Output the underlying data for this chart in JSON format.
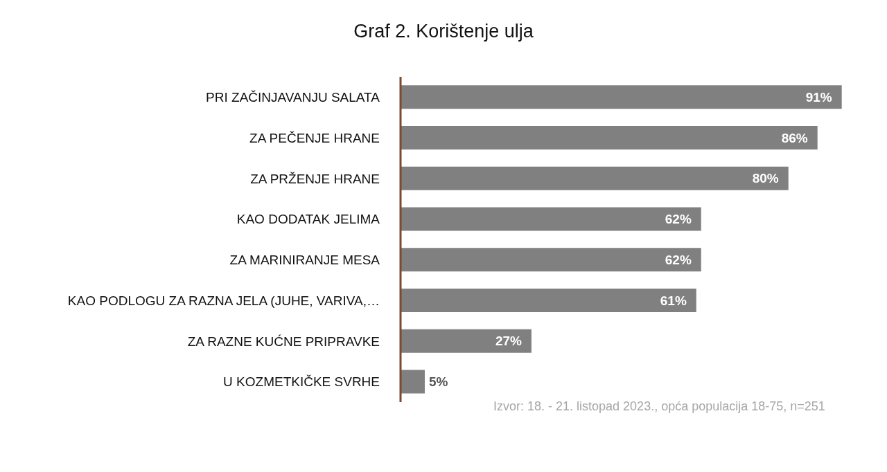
{
  "chart_data": {
    "type": "bar",
    "orientation": "horizontal",
    "title": "Graf 2. Korištenje ulja",
    "categories": [
      "PRI ZAČINJAVANJU SALATA",
      "ZA PEČENJE HRANE",
      "ZA PRŽENJE HRANE",
      "KAO DODATAK JELIMA",
      "ZA MARINIRANJE MESA",
      "KAO PODLOGU ZA RAZNA JELA (JUHE, VARIVA,…",
      "ZA RAZNE KUĆNE PRIPRAVKE",
      "U KOZMETKIČKE SVRHE"
    ],
    "values": [
      91,
      86,
      80,
      62,
      62,
      61,
      27,
      5
    ],
    "value_labels": [
      "91%",
      "86%",
      "80%",
      "62%",
      "62%",
      "61%",
      "27%",
      "5%"
    ],
    "color": "#808080",
    "annotations": [
      "Izvor: 18. - 21. listopad 2023., opća populacija 18-75, n=251"
    ]
  }
}
